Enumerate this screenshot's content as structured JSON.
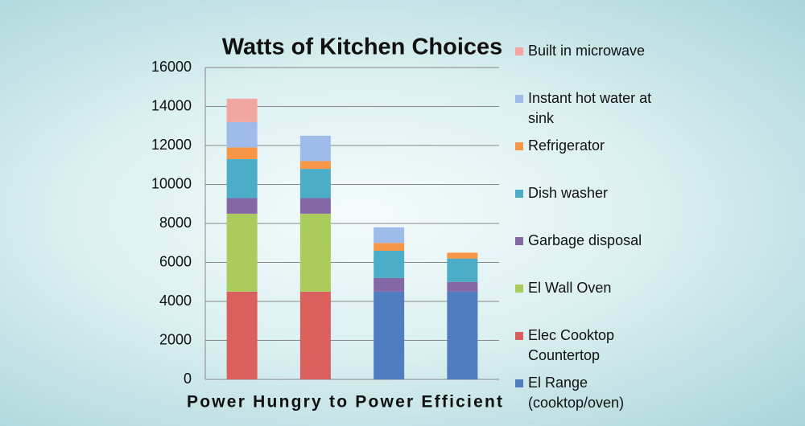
{
  "chart_data": {
    "type": "stacked_bar",
    "title": "Watts of Kitchen Choices",
    "x_label": "Power Hungry to Power Efficient",
    "categories": [
      null,
      null,
      null,
      null
    ],
    "ylim": [
      0,
      16000
    ],
    "yticks": [
      0,
      2000,
      4000,
      6000,
      8000,
      10000,
      12000,
      14000,
      16000
    ],
    "grid": true,
    "series": [
      {
        "name": "El Range (cooktop/oven)",
        "color": "#4f7dc0",
        "values": [
          0,
          0,
          4500,
          4500
        ]
      },
      {
        "name": "Elec Cooktop Countertop",
        "color": "#d9605c",
        "values": [
          4500,
          4500,
          0,
          0
        ]
      },
      {
        "name": "El Wall Oven",
        "color": "#a9cc5c",
        "values": [
          4000,
          4000,
          0,
          0
        ]
      },
      {
        "name": "Garbage disposal",
        "color": "#8468a6",
        "values": [
          800,
          800,
          700,
          500
        ]
      },
      {
        "name": "Dish washer",
        "color": "#4badc8",
        "values": [
          2000,
          1500,
          1400,
          1200
        ]
      },
      {
        "name": "Refrigerator",
        "color": "#f79646",
        "values": [
          600,
          400,
          400,
          300
        ]
      },
      {
        "name": "Instant hot water at sink",
        "color": "#9fbbe9",
        "values": [
          1300,
          1300,
          800,
          0
        ]
      },
      {
        "name": "Built in microwave",
        "color": "#f2a6a2",
        "values": [
          1200,
          0,
          0,
          0
        ]
      }
    ]
  }
}
